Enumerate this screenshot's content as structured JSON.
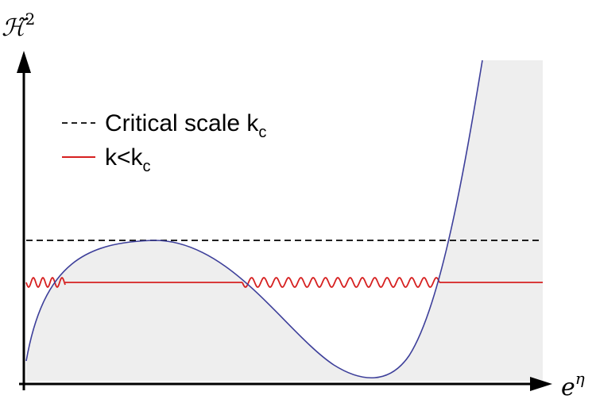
{
  "ylabel": {
    "base": "ℋ̃",
    "sup": "2"
  },
  "xlabel": {
    "base": "e",
    "sup": "η"
  },
  "legend": [
    {
      "id": "critical",
      "text": "Critical scale k",
      "sub": "c",
      "style": "dashed",
      "color": "#000000"
    },
    {
      "id": "subcritical",
      "text": "k<k",
      "sub": "c",
      "style": "solid",
      "color": "#d62020"
    }
  ],
  "colors": {
    "curve": "#3d3f9a",
    "shade": "#eeeeee",
    "axis": "#000000",
    "critical_line": "#000000",
    "subcritical_line": "#d62020"
  }
}
